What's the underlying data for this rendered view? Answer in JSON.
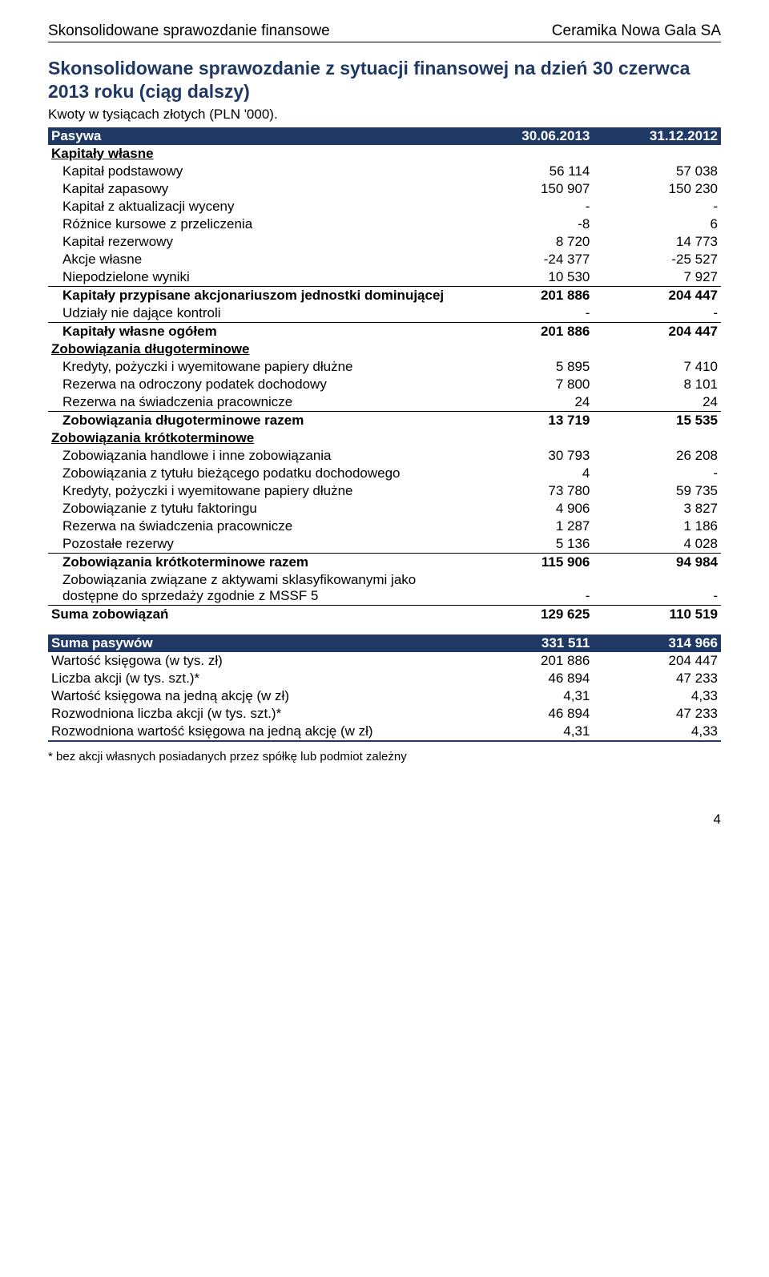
{
  "header": {
    "left": "Skonsolidowane sprawozdanie finansowe",
    "right": "Ceramika Nowa Gala SA"
  },
  "title": "Skonsolidowane sprawozdanie z sytuacji finansowej na dzień 30 czerwca 2013 roku (ciąg dalszy)",
  "subtitle": "Kwoty w tysiącach złotych (PLN '000).",
  "colhdr": {
    "label": "Pasywa",
    "c1": "30.06.2013",
    "c2": "31.12.2012"
  },
  "s1": {
    "title": "Kapitały własne",
    "r1": {
      "l": "Kapitał podstawowy",
      "a": "56 114",
      "b": "57 038"
    },
    "r2": {
      "l": "Kapitał zapasowy",
      "a": "150 907",
      "b": "150 230"
    },
    "r3": {
      "l": "Kapitał z aktualizacji wyceny",
      "a": "-",
      "b": "-"
    },
    "r4": {
      "l": "Różnice kursowe z przeliczenia",
      "a": "-8",
      "b": "6"
    },
    "r5": {
      "l": "Kapitał rezerwowy",
      "a": "8 720",
      "b": "14 773"
    },
    "r6": {
      "l": "Akcje własne",
      "a": "-24 377",
      "b": "-25 527"
    },
    "r7": {
      "l": "Niepodzielone wyniki",
      "a": "10 530",
      "b": "7 927"
    },
    "sub1": {
      "l": "Kapitały przypisane akcjonariuszom jednostki dominującej",
      "a": "201 886",
      "b": "204 447"
    },
    "r8": {
      "l": "Udziały nie dające kontroli",
      "a": "-",
      "b": "-"
    },
    "tot": {
      "l": "Kapitały własne ogółem",
      "a": "201 886",
      "b": "204 447"
    }
  },
  "s2": {
    "title": "Zobowiązania długoterminowe",
    "r1": {
      "l": "Kredyty, pożyczki i wyemitowane papiery dłużne",
      "a": "5 895",
      "b": "7 410"
    },
    "r2": {
      "l": "Rezerwa na odroczony podatek dochodowy",
      "a": "7 800",
      "b": "8 101"
    },
    "r3": {
      "l": "Rezerwa na świadczenia pracownicze",
      "a": "24",
      "b": "24"
    },
    "tot": {
      "l": "Zobowiązania długoterminowe razem",
      "a": "13 719",
      "b": "15 535"
    }
  },
  "s3": {
    "title": "Zobowiązania krótkoterminowe",
    "r1": {
      "l": "Zobowiązania handlowe i inne zobowiązania",
      "a": "30 793",
      "b": "26 208"
    },
    "r2": {
      "l": "Zobowiązania z tytułu bieżącego podatku dochodowego",
      "a": "4",
      "b": "-"
    },
    "r3": {
      "l": "Kredyty, pożyczki i wyemitowane papiery dłużne",
      "a": "73 780",
      "b": "59 735"
    },
    "r4": {
      "l": "Zobowiązanie z tytułu faktoringu",
      "a": "4 906",
      "b": "3 827"
    },
    "r5": {
      "l": "Rezerwa na świadczenia pracownicze",
      "a": "1 287",
      "b": "1 186"
    },
    "r6": {
      "l": "Pozostałe rezerwy",
      "a": "5 136",
      "b": "4 028"
    },
    "tot": {
      "l": "Zobowiązania krótkoterminowe razem",
      "a": "115 906",
      "b": "94 984"
    },
    "r7": {
      "l": "Zobowiązania związane z aktywami sklasyfikowanymi jako dostępne do sprzedaży zgodnie z MSSF 5",
      "a": "-",
      "b": "-"
    }
  },
  "sumliab": {
    "l": "Suma zobowiązań",
    "a": "129 625",
    "b": "110 519"
  },
  "sumpas": {
    "l": "Suma pasywów",
    "a": "331 511",
    "b": "314 966"
  },
  "metrics": {
    "r1": {
      "l": "Wartość księgowa (w tys. zł)",
      "a": "201 886",
      "b": "204 447"
    },
    "r2": {
      "l": "Liczba akcji (w tys. szt.)*",
      "a": "46 894",
      "b": "47 233"
    },
    "r3": {
      "l": "Wartość księgowa na jedną akcję (w zł)",
      "a": "4,31",
      "b": "4,33"
    },
    "r4": {
      "l": "Rozwodniona liczba akcji (w tys. szt.)*",
      "a": "46 894",
      "b": "47 233"
    },
    "r5": {
      "l": "Rozwodniona wartość księgowa na jedną akcję (w zł)",
      "a": "4,31",
      "b": "4,33"
    }
  },
  "footnote": "* bez akcji własnych posiadanych przez spółkę lub podmiot zależny",
  "pagenum": "4",
  "style": {
    "bar_bg": "#1f3864",
    "bar_fg": "#ffffff",
    "title_color": "#1f3864"
  }
}
